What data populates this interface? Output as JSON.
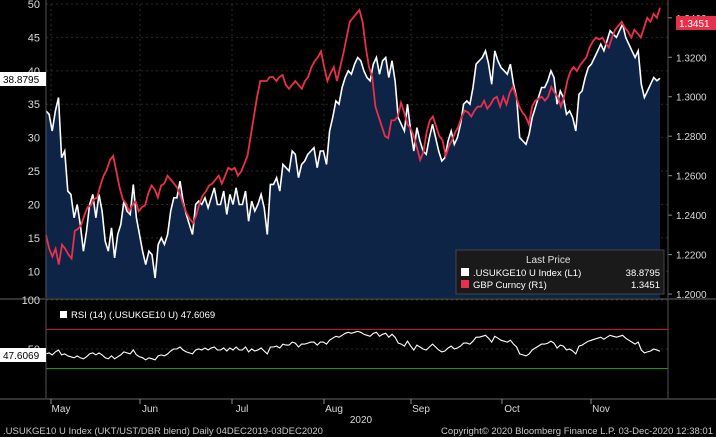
{
  "chart_data": {
    "type": "line",
    "footer": {
      "left": ".USUKGE10 U Index (UKT/UST/DBR blend)  Daily 04DEC2019-03DEC2020",
      "right": "Copyright© 2020 Bloomberg Finance L.P.   03-Dec-2020 12:38:01"
    },
    "year_label": "2020",
    "x_labels": [
      "May",
      "Jun",
      "Jul",
      "Aug",
      "Sep",
      "Oct",
      "Nov"
    ],
    "left_axis": {
      "range": [
        6,
        50
      ],
      "ticks": [
        "10",
        "15",
        "20",
        "25",
        "30",
        "35",
        "40",
        "45",
        "50"
      ]
    },
    "right_axis": {
      "range": [
        1.198,
        1.347
      ],
      "ticks": [
        "1.2000",
        "1.2200",
        "1.2400",
        "1.2600",
        "1.2800",
        "1.3000",
        "1.3200",
        "1.3400"
      ]
    },
    "legend": {
      "title": "Last Price",
      "entries": [
        {
          "label": ".USUKGE10 U Index  (L1)",
          "value": "38.8795",
          "color": "#ffffff"
        },
        {
          "label": "GBP Curncy  (R1)",
          "value": "1.3451",
          "color": "#e8304a"
        }
      ]
    },
    "last_tags": {
      "left": "38.8795",
      "right": "1.3451"
    },
    "series": [
      {
        "name": ".USUKGE10 U Index",
        "axis": "left",
        "color": "#ffffff",
        "values": [
          34,
          33.5,
          31,
          34,
          36,
          27,
          28,
          22,
          21.5,
          18,
          20,
          17,
          13,
          16,
          20,
          21.5,
          18,
          21.5,
          19,
          14.5,
          13,
          16.5,
          12,
          15.5,
          17,
          20.5,
          19,
          18.5,
          23,
          18,
          15.5,
          13,
          11,
          13,
          12.5,
          9,
          14,
          15,
          14,
          15.5,
          19,
          21,
          21,
          23.5,
          20.5,
          18.5,
          17,
          15.5,
          20,
          20.5,
          20,
          21,
          19.5,
          21,
          22.5,
          20,
          20,
          22,
          18.5,
          21.5,
          20,
          22.5,
          20,
          20,
          22,
          17.5,
          20.5,
          19,
          20,
          21.5,
          19.5,
          15.5,
          23,
          23,
          24,
          22,
          26,
          25.5,
          25,
          28,
          27.5,
          24,
          26,
          26.5,
          27.5,
          28,
          28.5,
          25.5,
          28,
          28,
          26,
          31,
          33,
          35.5,
          35,
          37.5,
          39,
          40,
          39.5,
          41,
          42,
          41.5,
          40,
          39,
          38.5,
          41,
          42,
          39.5,
          41.5,
          42,
          39,
          41.5,
          38.5,
          33,
          32,
          31,
          35,
          31,
          28,
          31.5,
          29.5,
          28,
          27.5,
          30,
          32,
          30,
          28,
          26.5,
          27,
          29.5,
          31,
          29,
          30,
          32,
          35,
          35.5,
          35,
          37.5,
          41,
          41.5,
          42,
          43,
          41,
          38,
          43,
          41.5,
          40.5,
          40,
          39.5,
          41,
          38,
          36,
          30,
          29.5,
          29,
          30.5,
          33,
          34.5,
          36,
          37.5,
          37.5,
          38.5,
          40,
          39,
          35,
          37,
          36,
          33.5,
          34,
          33,
          31,
          36.5,
          37,
          39,
          40.5,
          41,
          42,
          43,
          44,
          43,
          44.5,
          46,
          45.5,
          45,
          46,
          47,
          45,
          44,
          43,
          42,
          43,
          38,
          36,
          37,
          38,
          39,
          38.5,
          38.8795
        ],
        "last": "38.8795"
      },
      {
        "name": "GBP Curncy",
        "axis": "right",
        "color": "#e8304a",
        "values": [
          1.23,
          1.223,
          1.219,
          1.223,
          1.215,
          1.225,
          1.223,
          1.22,
          1.218,
          1.232,
          1.233,
          1.235,
          1.24,
          1.244,
          1.245,
          1.248,
          1.249,
          1.255,
          1.26,
          1.263,
          1.268,
          1.27,
          1.262,
          1.254,
          1.248,
          1.246,
          1.242,
          1.245,
          1.247,
          1.242,
          1.244,
          1.245,
          1.251,
          1.255,
          1.253,
          1.249,
          1.255,
          1.256,
          1.26,
          1.258,
          1.256,
          1.254,
          1.25,
          1.245,
          1.241,
          1.238,
          1.236,
          1.24,
          1.246,
          1.25,
          1.252,
          1.255,
          1.256,
          1.258,
          1.26,
          1.256,
          1.26,
          1.264,
          1.263,
          1.264,
          1.26,
          1.262,
          1.266,
          1.27,
          1.28,
          1.29,
          1.3,
          1.308,
          1.308,
          1.308,
          1.31,
          1.31,
          1.308,
          1.31,
          1.311,
          1.306,
          1.304,
          1.306,
          1.308,
          1.306,
          1.304,
          1.308,
          1.31,
          1.315,
          1.318,
          1.32,
          1.323,
          1.315,
          1.308,
          1.312,
          1.315,
          1.308,
          1.315,
          1.322,
          1.33,
          1.338,
          1.34,
          1.342,
          1.344,
          1.338,
          1.325,
          1.315,
          1.31,
          1.295,
          1.29,
          1.285,
          1.28,
          1.279,
          1.288,
          1.288,
          1.29,
          1.297,
          1.292,
          1.286,
          1.284,
          1.28,
          1.274,
          1.268,
          1.272,
          1.282,
          1.288,
          1.29,
          1.285,
          1.28,
          1.278,
          1.27,
          1.275,
          1.278,
          1.282,
          1.285,
          1.29,
          1.293,
          1.292,
          1.29,
          1.293,
          1.295,
          1.295,
          1.298,
          1.294,
          1.296,
          1.299,
          1.3,
          1.295,
          1.3,
          1.296,
          1.302,
          1.305,
          1.3,
          1.295,
          1.292,
          1.29,
          1.286,
          1.295,
          1.298,
          1.299,
          1.3,
          1.298,
          1.3,
          1.305,
          1.302,
          1.3,
          1.295,
          1.3,
          1.308,
          1.313,
          1.315,
          1.313,
          1.316,
          1.318,
          1.32,
          1.325,
          1.328,
          1.33,
          1.329,
          1.33,
          1.327,
          1.325,
          1.33,
          1.334,
          1.336,
          1.338,
          1.335,
          1.333,
          1.33,
          1.334,
          1.332,
          1.33,
          1.335,
          1.34,
          1.338,
          1.342,
          1.34,
          1.3451
        ],
        "last": "1.3451"
      }
    ]
  },
  "rsi_panel": {
    "label": "RSI (14)  (.USUKGE10 U)  47.6069",
    "value_tag": "47.6069",
    "ticks": [
      "100",
      "50"
    ],
    "range": [
      0,
      100
    ],
    "overbought": 70,
    "oversold": 30,
    "line_color": "#ffffff",
    "upper_band_color": "#d0202a",
    "lower_band_color": "#2f9e2f",
    "values": [
      45,
      46,
      44,
      47,
      49,
      44,
      45,
      43,
      42,
      41,
      43,
      41,
      40,
      42,
      45,
      46,
      44,
      46,
      44,
      41,
      40,
      43,
      40,
      42,
      44,
      47,
      46,
      45,
      49,
      44,
      42,
      41,
      39,
      41,
      40,
      39,
      43,
      44,
      43,
      45,
      48,
      50,
      50,
      52,
      49,
      47,
      46,
      45,
      49,
      50,
      49,
      51,
      49,
      51,
      52,
      49,
      49,
      51,
      48,
      51,
      49,
      52,
      49,
      49,
      52,
      47,
      50,
      48,
      49,
      51,
      48,
      45,
      52,
      52,
      53,
      51,
      55,
      54,
      54,
      57,
      56,
      52,
      55,
      55,
      56,
      57,
      57,
      54,
      57,
      57,
      55,
      59,
      61,
      63,
      62,
      64,
      66,
      67,
      66,
      67,
      68,
      67,
      65,
      64,
      63,
      66,
      67,
      63,
      65,
      66,
      62,
      65,
      62,
      56,
      55,
      53,
      58,
      53,
      49,
      54,
      52,
      50,
      49,
      52,
      55,
      52,
      49,
      47,
      48,
      51,
      53,
      50,
      51,
      53,
      56,
      56,
      55,
      58,
      62,
      62,
      63,
      64,
      61,
      57,
      63,
      61,
      59,
      58,
      57,
      59,
      55,
      52,
      45,
      44,
      43,
      45,
      49,
      51,
      53,
      55,
      55,
      56,
      58,
      56,
      51,
      54,
      53,
      49,
      50,
      48,
      45,
      53,
      54,
      56,
      58,
      59,
      60,
      61,
      62,
      60,
      62,
      64,
      63,
      62,
      63,
      64,
      61,
      59,
      57,
      55,
      57,
      49,
      46,
      47,
      48,
      50,
      49,
      47.6069
    ]
  }
}
